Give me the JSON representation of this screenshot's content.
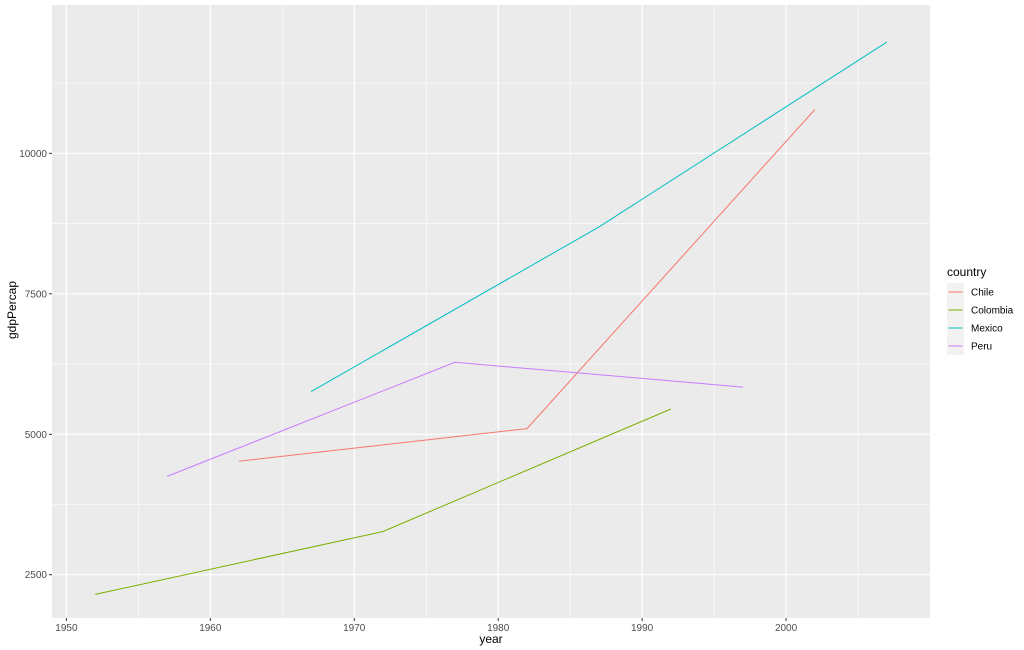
{
  "chart_data": {
    "type": "line",
    "title": "",
    "xlabel": "year",
    "ylabel": "gdpPercap",
    "xlim": [
      1949,
      2010
    ],
    "ylim": [
      1730,
      12640
    ],
    "x_ticks": [
      1950,
      1960,
      1970,
      1980,
      1990,
      2000
    ],
    "y_ticks": [
      2500,
      5000,
      7500,
      10000
    ],
    "x_tick_labels": [
      "1950",
      "1960",
      "1970",
      "1980",
      "1990",
      "2000"
    ],
    "y_tick_labels": [
      "2500",
      "5000",
      "7500",
      "10000"
    ],
    "grid": true,
    "legend": {
      "title": "country",
      "position": "right"
    },
    "series": [
      {
        "name": "Chile",
        "color": "#F8766D",
        "points": [
          [
            1962,
            4520
          ],
          [
            1982,
            5100
          ],
          [
            2002,
            10780
          ]
        ]
      },
      {
        "name": "Colombia",
        "color": "#7CAE00",
        "points": [
          [
            1952,
            2150
          ],
          [
            1972,
            3270
          ],
          [
            1992,
            5450
          ]
        ]
      },
      {
        "name": "Mexico",
        "color": "#00BFC4",
        "points": [
          [
            1967,
            5760
          ],
          [
            1987,
            8690
          ],
          [
            2007,
            11980
          ]
        ]
      },
      {
        "name": "Peru",
        "color": "#C77CFF",
        "points": [
          [
            1957,
            4250
          ],
          [
            1977,
            6280
          ],
          [
            1997,
            5840
          ]
        ]
      }
    ]
  }
}
